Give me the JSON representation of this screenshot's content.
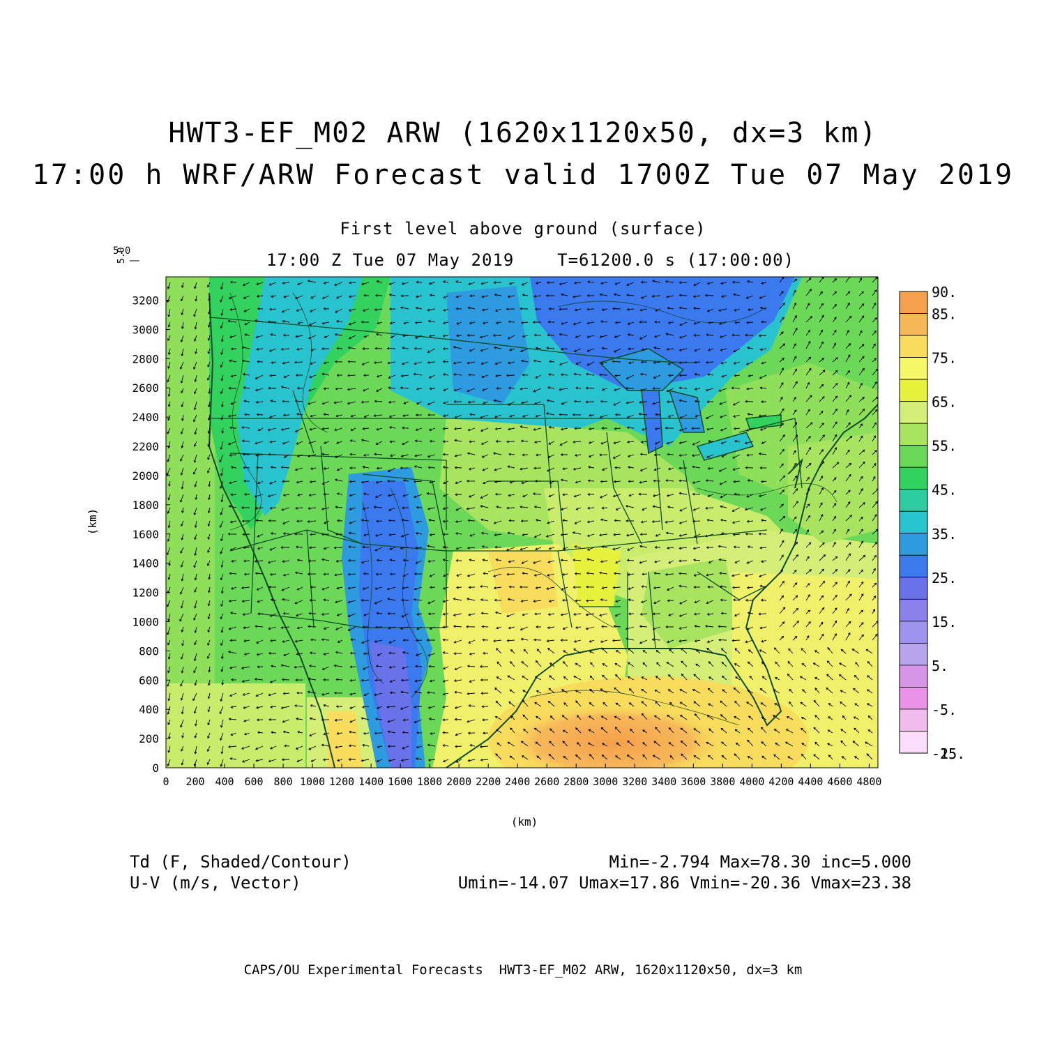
{
  "header": {
    "title_line1": "HWT3-EF_M02 ARW (1620x1120x50, dx=3 km)",
    "title_line2": "17:00 h WRF/ARW Forecast valid 1700Z Tue 07 May 2019",
    "subtitle_level": "First level above ground (surface)",
    "subtitle_time": "17:00 Z Tue 07 May 2019    T=61200.0 s (17:00:00)"
  },
  "vector_reference": {
    "label": "5.0",
    "rotated_label": "5.0"
  },
  "axes": {
    "x_label": "(km)",
    "y_label": "(km)",
    "x_ticks": [
      0,
      200,
      400,
      600,
      800,
      1000,
      1200,
      1400,
      1600,
      1800,
      2000,
      2200,
      2400,
      2600,
      2800,
      3000,
      3200,
      3400,
      3600,
      3800,
      4000,
      4200,
      4400,
      4600,
      4800
    ],
    "y_ticks": [
      0,
      200,
      400,
      600,
      800,
      1000,
      1200,
      1400,
      1600,
      1800,
      2000,
      2200,
      2400,
      2600,
      2800,
      3000,
      3200
    ],
    "x_range": [
      0,
      4860
    ],
    "y_range": [
      0,
      3360
    ]
  },
  "colorbar": {
    "labels": [
      "90.",
      "85.",
      "75.",
      "65.",
      "55.",
      "45.",
      "35.",
      "25.",
      "15.",
      "5.",
      "-5.",
      "-15.",
      "-25."
    ],
    "colors": [
      "#f5a04c",
      "#f7b85a",
      "#f8dc5c",
      "#f7f76a",
      "#e6f23b",
      "#d4ee77",
      "#a9e460",
      "#6bd957",
      "#33d25e",
      "#2dcda2",
      "#28c3cf",
      "#2e9ae0",
      "#3a79ee",
      "#6a72ea",
      "#8a82ea",
      "#9e94f0",
      "#b7a6ee",
      "#d895e8",
      "#e992e8",
      "#f1bcee",
      "#fbdcfb"
    ]
  },
  "statistics": {
    "field_line": "Td (F, Shaded/Contour)",
    "vector_line": "U-V (m/s, Vector)",
    "field_stats": "Min=-2.794 Max=78.30 inc=5.000",
    "vector_stats": "Umin=-14.07 Umax=17.86 Vmin=-20.36 Vmax=23.38"
  },
  "footer": "CAPS/OU Experimental Forecasts  HWT3-EF_M02 ARW, 1620x1120x50, dx=3 km"
}
